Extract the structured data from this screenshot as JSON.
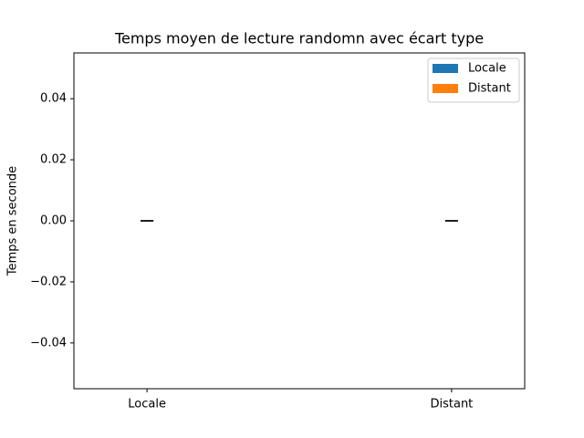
{
  "chart_data": {
    "type": "bar",
    "title": "Temps moyen de lecture randomn avec écart type",
    "ylabel": "Temps en seconde",
    "categories": [
      "Locale",
      "Distant"
    ],
    "series": [
      {
        "name": "Locale",
        "color": "#1f77b4",
        "values": [
          0,
          null
        ],
        "errors": [
          0,
          null
        ]
      },
      {
        "name": "Distant",
        "color": "#ff7f0e",
        "values": [
          null,
          0
        ],
        "errors": [
          null,
          0
        ]
      }
    ],
    "ylim": [
      -0.055,
      0.055
    ],
    "yticks": [
      {
        "value": -0.04,
        "label": "−0.04"
      },
      {
        "value": -0.02,
        "label": "−0.02"
      },
      {
        "value": 0,
        "label": "0.00"
      },
      0.02,
      0.04
    ],
    "legend": "upper right"
  }
}
